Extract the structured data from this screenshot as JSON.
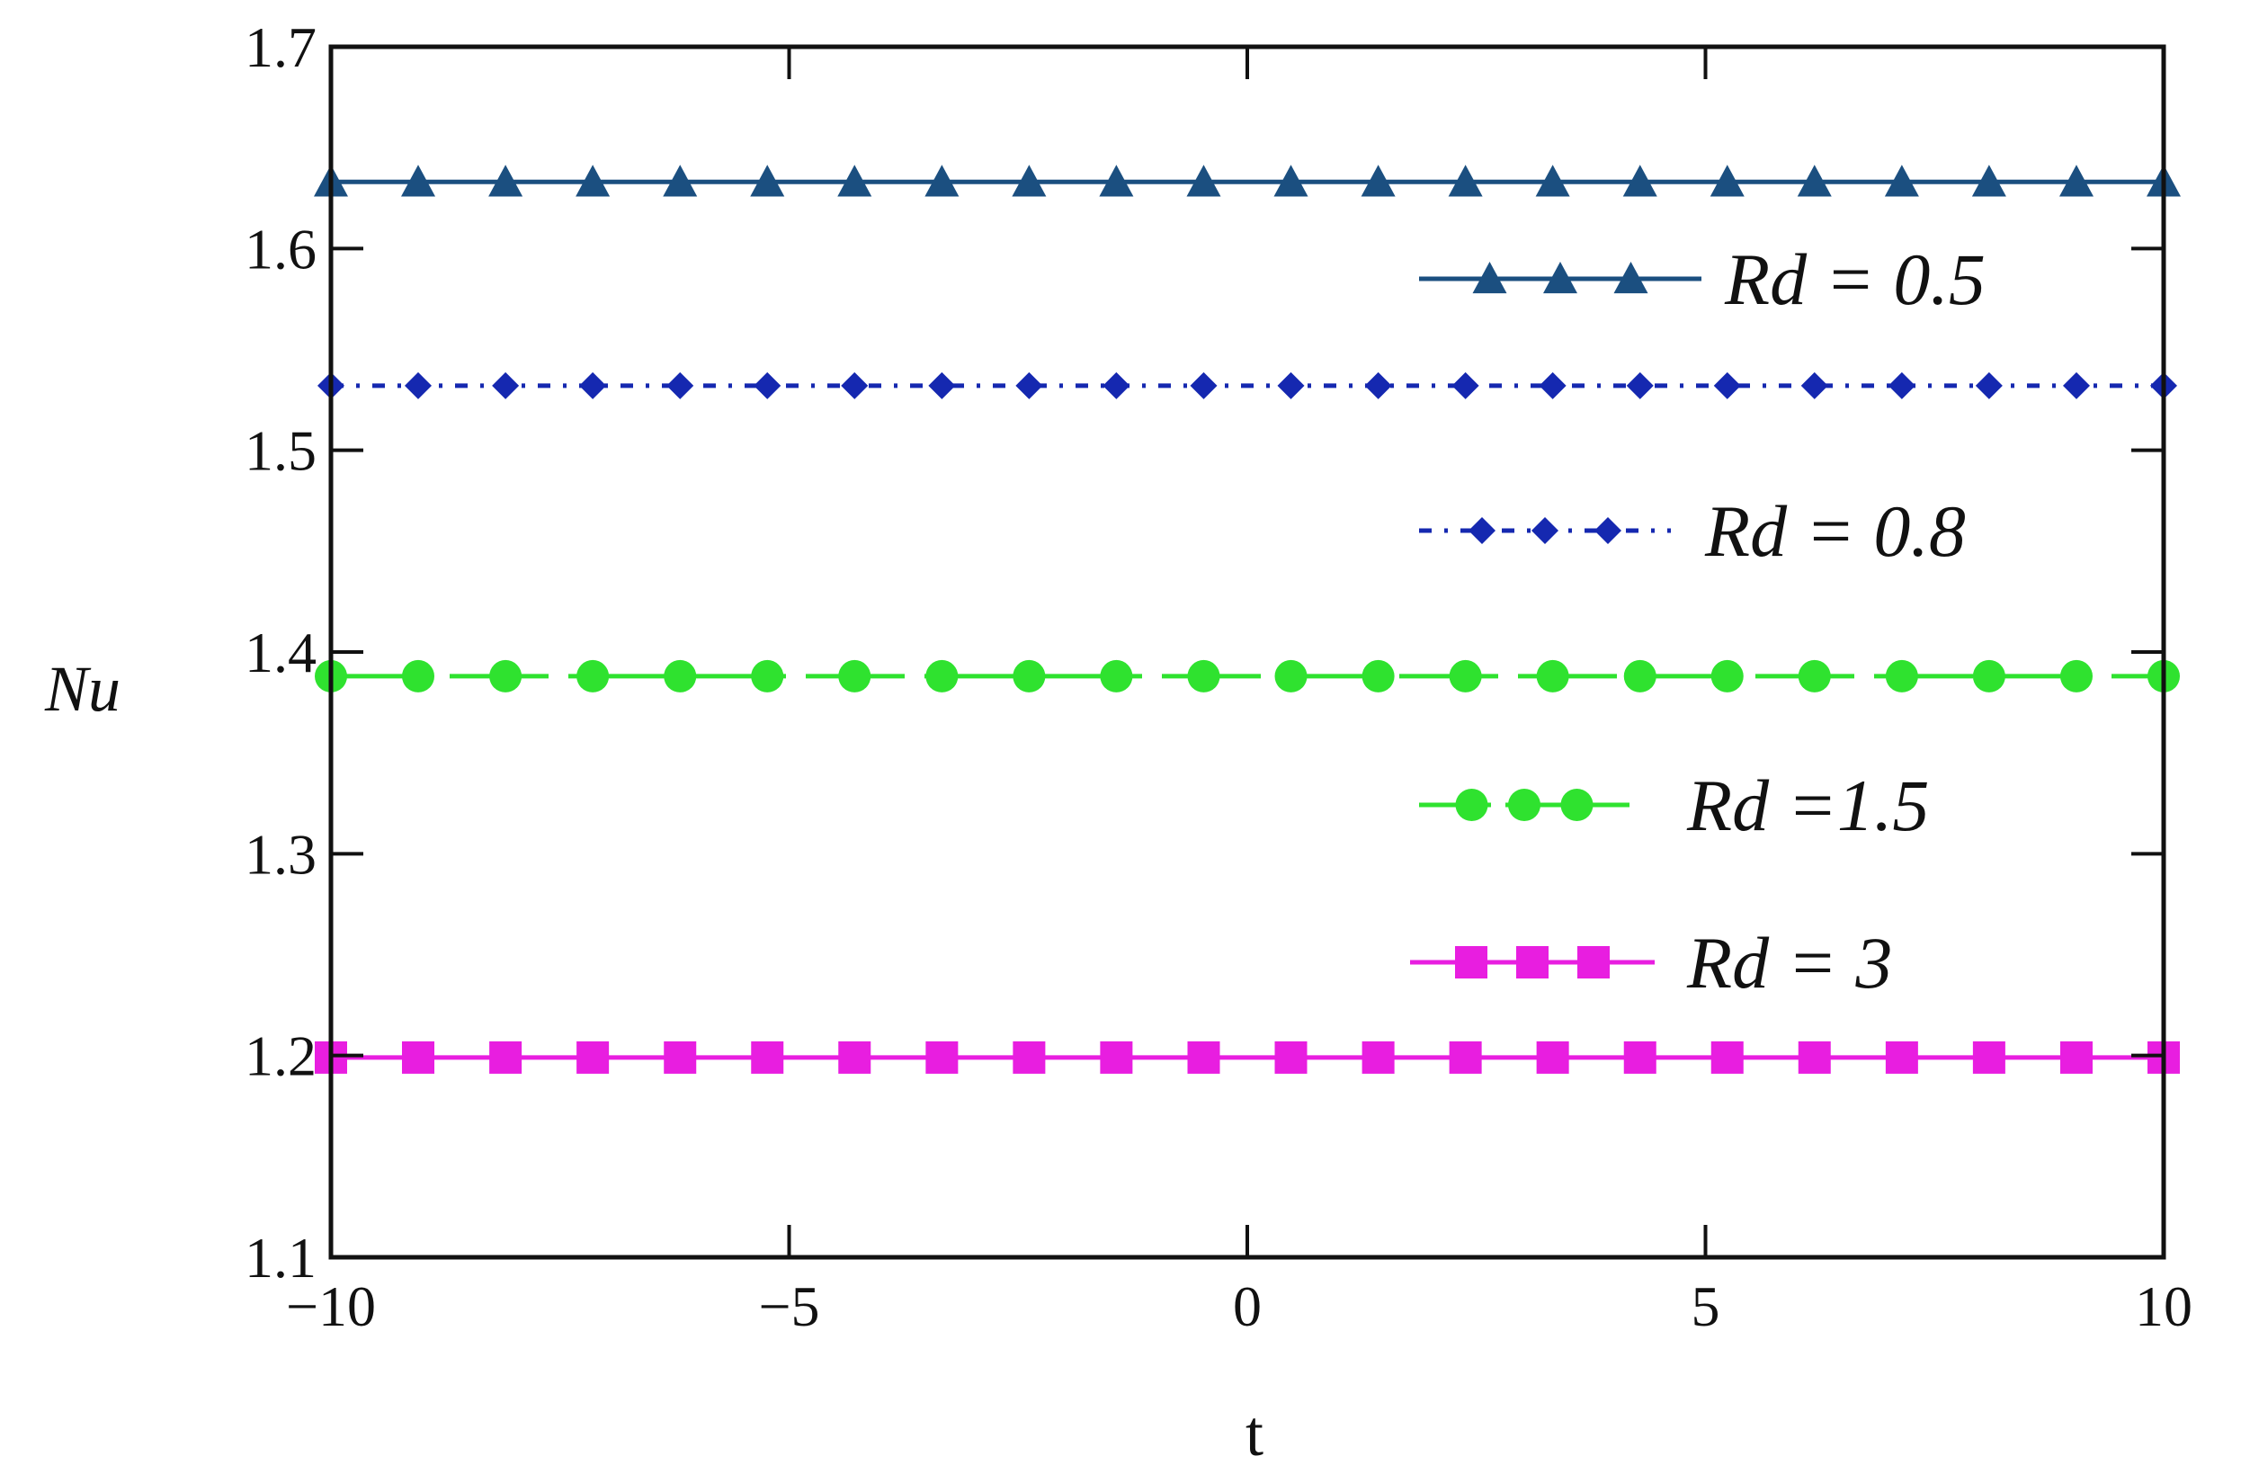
{
  "chart_data": {
    "type": "line",
    "title": "",
    "xlabel": "t",
    "ylabel": "Nu",
    "xlim": [
      -10,
      10
    ],
    "ylim": [
      1.1,
      1.7
    ],
    "x_ticks": [
      -10,
      -5,
      0,
      5,
      10
    ],
    "x_tick_labels": [
      "−10",
      "−5",
      "0",
      "5",
      "10"
    ],
    "y_ticks": [
      1.1,
      1.2,
      1.3,
      1.4,
      1.5,
      1.6,
      1.7
    ],
    "y_tick_labels": [
      "1.1",
      "1.2",
      "1.3",
      "1.4",
      "1.5",
      "1.6",
      "1.7"
    ],
    "grid": false,
    "legend_position": "right",
    "marker_x": [
      -10,
      -9.048,
      -8.095,
      -7.143,
      -6.19,
      -5.238,
      -4.286,
      -3.333,
      -2.381,
      -1.429,
      -0.476,
      0.476,
      1.429,
      2.381,
      3.333,
      4.286,
      5.238,
      6.19,
      7.143,
      8.095,
      9.048,
      10
    ],
    "series": [
      {
        "name": "Rd = 0.5",
        "legend_label": "Rd = 0.5",
        "x": [
          -10,
          10
        ],
        "y": [
          1.633,
          1.633
        ],
        "color": "#1b4f80",
        "marker": "triangle",
        "dash": "solid"
      },
      {
        "name": "Rd = 0.8",
        "legend_label": "Rd = 0.8",
        "x": [
          -10,
          10
        ],
        "y": [
          1.532,
          1.532
        ],
        "color": "#1528b0",
        "marker": "diamond",
        "dash": "dashdot"
      },
      {
        "name": "Rd = 1.5",
        "legend_label": "Rd =1.5",
        "x": [
          -10,
          10
        ],
        "y": [
          1.388,
          1.388
        ],
        "color": "#2fe22f",
        "marker": "circle",
        "dash": "longdash"
      },
      {
        "name": "Rd = 3",
        "legend_label": "Rd = 3",
        "x": [
          -10,
          10
        ],
        "y": [
          1.199,
          1.199
        ],
        "color": "#e81ee0",
        "marker": "square",
        "dash": "solid"
      }
    ]
  }
}
